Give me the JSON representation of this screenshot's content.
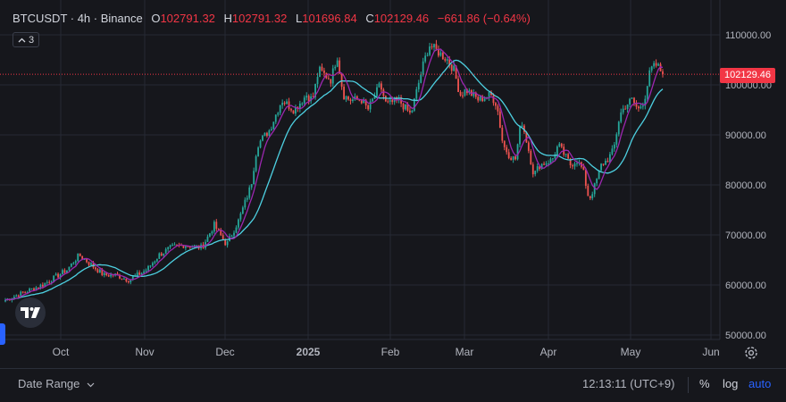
{
  "header": {
    "symbol": "BTCUSDT · 4h · Binance",
    "o_label": "O",
    "o_value": "102791.32",
    "h_label": "H",
    "h_value": "102791.32",
    "l_label": "L",
    "l_value": "101696.84",
    "c_label": "C",
    "c_value": "102129.46",
    "change": "−661.86 (−0.64%)"
  },
  "indicator_count": "3",
  "last_price_label": "102129.46",
  "bottom": {
    "date_range": "Date Range",
    "time": "12:13:11 (UTC+9)",
    "percent": "%",
    "log": "log",
    "auto": "auto"
  },
  "colors": {
    "up": "#26a69a",
    "down": "#ef5350",
    "ma_fast": "#9c27b0",
    "ma_slow": "#4dd0e1",
    "background": "#16171c",
    "grid": "#262a34"
  },
  "icons": {
    "logo": "tradingview-logo-icon",
    "settings": "gear-icon",
    "chevron": "chevron-down-icon"
  },
  "chart_data": {
    "type": "candlestick",
    "symbol": "BTCUSDT",
    "interval": "4h",
    "exchange": "Binance",
    "ylim": [
      50000,
      115000
    ],
    "y_ticks": [
      "110000.00",
      "100000.00",
      "90000.00",
      "80000.00",
      "70000.00",
      "60000.00",
      "50000.00"
    ],
    "x_ticks": [
      "Oct",
      "Nov",
      "Dec",
      "2025",
      "Feb",
      "Mar",
      "Apr",
      "May",
      "Jun"
    ],
    "grid": true,
    "last_price": 102129.46,
    "price_path": [
      [
        0,
        57000
      ],
      [
        6,
        60000
      ],
      [
        10,
        63000
      ],
      [
        12,
        66000
      ],
      [
        14,
        64000
      ],
      [
        16,
        62000
      ],
      [
        18,
        62000
      ],
      [
        20,
        61000
      ],
      [
        23,
        63000
      ],
      [
        25,
        66000
      ],
      [
        27,
        67500
      ],
      [
        29,
        68000
      ],
      [
        32,
        67500
      ],
      [
        34,
        72000
      ],
      [
        36,
        68000
      ],
      [
        38,
        73000
      ],
      [
        40,
        80000
      ],
      [
        41,
        88000
      ],
      [
        43,
        91000
      ],
      [
        45,
        97000
      ],
      [
        47,
        95000
      ],
      [
        49,
        98000
      ],
      [
        50,
        97000
      ],
      [
        51,
        103000
      ],
      [
        53,
        101000
      ],
      [
        54,
        106000
      ],
      [
        55,
        98000
      ],
      [
        56,
        97000
      ],
      [
        58,
        97000
      ],
      [
        59,
        95000
      ],
      [
        61,
        100000
      ],
      [
        62,
        96000
      ],
      [
        64,
        97000
      ],
      [
        66,
        94000
      ],
      [
        68,
        104000
      ],
      [
        69,
        108000
      ],
      [
        71,
        106000
      ],
      [
        72,
        105000
      ],
      [
        73,
        103000
      ],
      [
        74,
        98000
      ],
      [
        75,
        99000
      ],
      [
        77,
        97000
      ],
      [
        79,
        98000
      ],
      [
        80,
        96000
      ],
      [
        81,
        88000
      ],
      [
        82,
        86000
      ],
      [
        83,
        85000
      ],
      [
        84,
        93000
      ],
      [
        85,
        88000
      ],
      [
        86,
        82000
      ],
      [
        87,
        84000
      ],
      [
        89,
        85000
      ],
      [
        90,
        88000
      ],
      [
        91,
        86000
      ],
      [
        92,
        84000
      ],
      [
        93,
        85000
      ],
      [
        94,
        83000
      ],
      [
        95,
        77000
      ],
      [
        96,
        80000
      ],
      [
        97,
        84000
      ],
      [
        98,
        85000
      ],
      [
        99,
        87000
      ],
      [
        100,
        94000
      ],
      [
        101,
        96000
      ],
      [
        102,
        97000
      ],
      [
        103,
        95000
      ],
      [
        104,
        97000
      ],
      [
        105,
        103000
      ],
      [
        106,
        104000
      ],
      [
        107,
        102129
      ]
    ],
    "moving_averages": [
      {
        "label": "fast",
        "color": "#9c27b0"
      },
      {
        "label": "slow",
        "color": "#4dd0e1"
      }
    ]
  }
}
